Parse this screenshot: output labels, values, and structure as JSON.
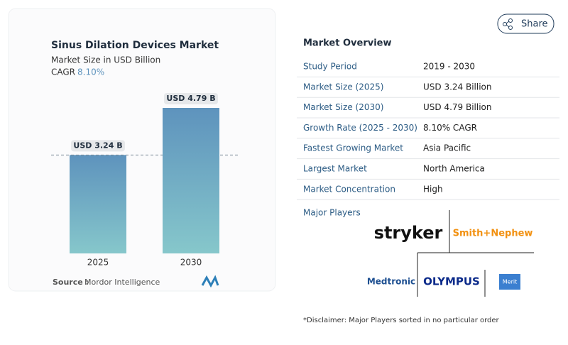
{
  "chart_data": {
    "type": "bar",
    "title": "Sinus Dilation Devices Market",
    "subtitle": "Market Size in USD Billion",
    "cagr_label": "CAGR",
    "cagr": "8.10%",
    "categories": [
      "2025",
      "2030"
    ],
    "values": [
      3.24,
      4.79
    ],
    "value_labels": [
      "USD 3.24 B",
      "USD 4.79 B"
    ],
    "color": "#5e93bd",
    "color_bottom": "#86c7cb",
    "source_label": "Source :",
    "source": "Mordor Intelligence"
  },
  "share": "Share",
  "overview": {
    "title": "Market Overview",
    "rows": [
      [
        "Study Period",
        "2019 - 2030"
      ],
      [
        "Market Size (2025)",
        "USD 3.24 Billion"
      ],
      [
        "Market Size (2030)",
        "USD 4.79 Billion"
      ],
      [
        "Growth Rate (2025 - 2030)",
        "8.10% CAGR"
      ],
      [
        "Fastest Growing Market",
        "Asia Pacific"
      ],
      [
        "Largest Market",
        "North America"
      ],
      [
        "Market Concentration",
        "High"
      ]
    ],
    "major_players_label": "Major Players",
    "players": [
      "stryker",
      "Smith+Nephew",
      "Medtronic",
      "OLYMPUS",
      "Merit"
    ],
    "disclaimer": "*Disclaimer: Major Players sorted in no particular order"
  }
}
